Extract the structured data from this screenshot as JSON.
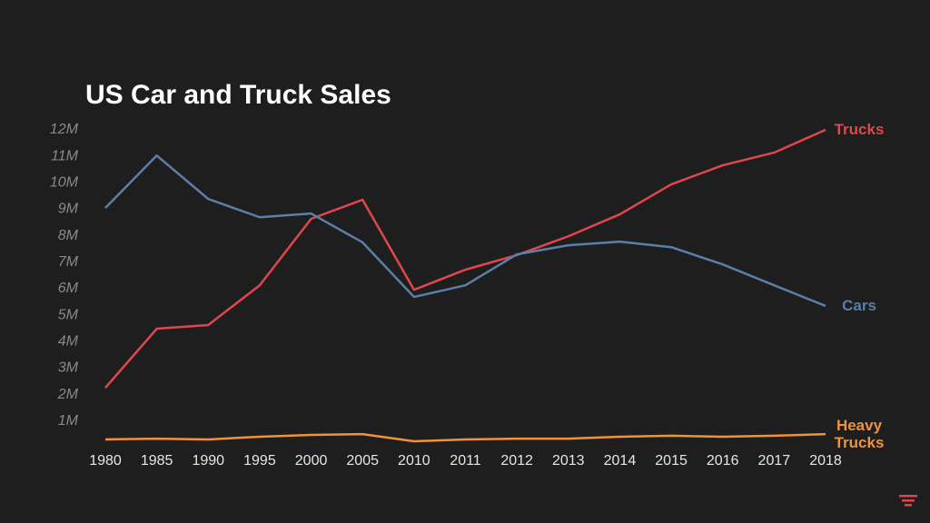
{
  "chart_data": {
    "type": "line",
    "title": "US Car and Truck Sales",
    "categories": [
      "1980",
      "1985",
      "1990",
      "1995",
      "2000",
      "2005",
      "2010",
      "2011",
      "2012",
      "2013",
      "2014",
      "2015",
      "2016",
      "2017",
      "2018"
    ],
    "series": [
      {
        "name": "Trucks",
        "color": "#e0474c",
        "values": [
          2260000,
          4490000,
          4630000,
          6130000,
          8640000,
          9360000,
          5960000,
          6720000,
          7270000,
          7980000,
          8810000,
          9940000,
          10660000,
          11140000,
          12000000
        ]
      },
      {
        "name": "Cars",
        "color": "#5a7fa8",
        "values": [
          9050000,
          11030000,
          9390000,
          8700000,
          8840000,
          7750000,
          5690000,
          6130000,
          7300000,
          7640000,
          7780000,
          7570000,
          6920000,
          6130000,
          5350000
        ]
      },
      {
        "name": "Heavy Trucks",
        "color": "#f0923a",
        "values": [
          310000,
          340000,
          310000,
          410000,
          480000,
          510000,
          240000,
          310000,
          340000,
          340000,
          410000,
          450000,
          410000,
          450000,
          510000
        ]
      }
    ],
    "ylim": [
      0,
      12000000
    ],
    "yticks": [
      {
        "value": 1000000,
        "label": "1M"
      },
      {
        "value": 2000000,
        "label": "2M"
      },
      {
        "value": 3000000,
        "label": "3M"
      },
      {
        "value": 4000000,
        "label": "4M"
      },
      {
        "value": 5000000,
        "label": "5M"
      },
      {
        "value": 6000000,
        "label": "6M"
      },
      {
        "value": 7000000,
        "label": "7M"
      },
      {
        "value": 8000000,
        "label": "8M"
      },
      {
        "value": 9000000,
        "label": "9M"
      },
      {
        "value": 10000000,
        "label": "10M"
      },
      {
        "value": 11000000,
        "label": "11M"
      },
      {
        "value": 12000000,
        "label": "12M"
      }
    ],
    "grid": false
  }
}
